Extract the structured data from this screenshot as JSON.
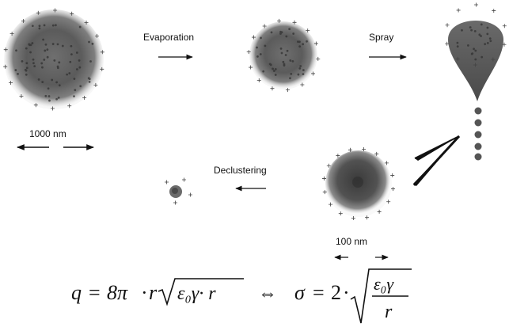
{
  "steps": {
    "evaporation": "Evaporation",
    "spray": "Spray",
    "declustering": "Declustering"
  },
  "scales": {
    "large": "1000 nm",
    "small": "100 nm"
  },
  "formula": {
    "charge_lhs": "q",
    "charge_coefficient": "8π",
    "charge_sqrt_content": "ε₀γ· r",
    "equivalence": "⇔",
    "sigma_lhs": "σ",
    "sigma_coefficient": "2",
    "sigma_numerator": "ε₀γ",
    "sigma_denominator": "r"
  },
  "colors": {
    "droplet_dark": "#3c3c3c",
    "droplet_mid": "#7a7a7a",
    "ink": "#111111"
  }
}
